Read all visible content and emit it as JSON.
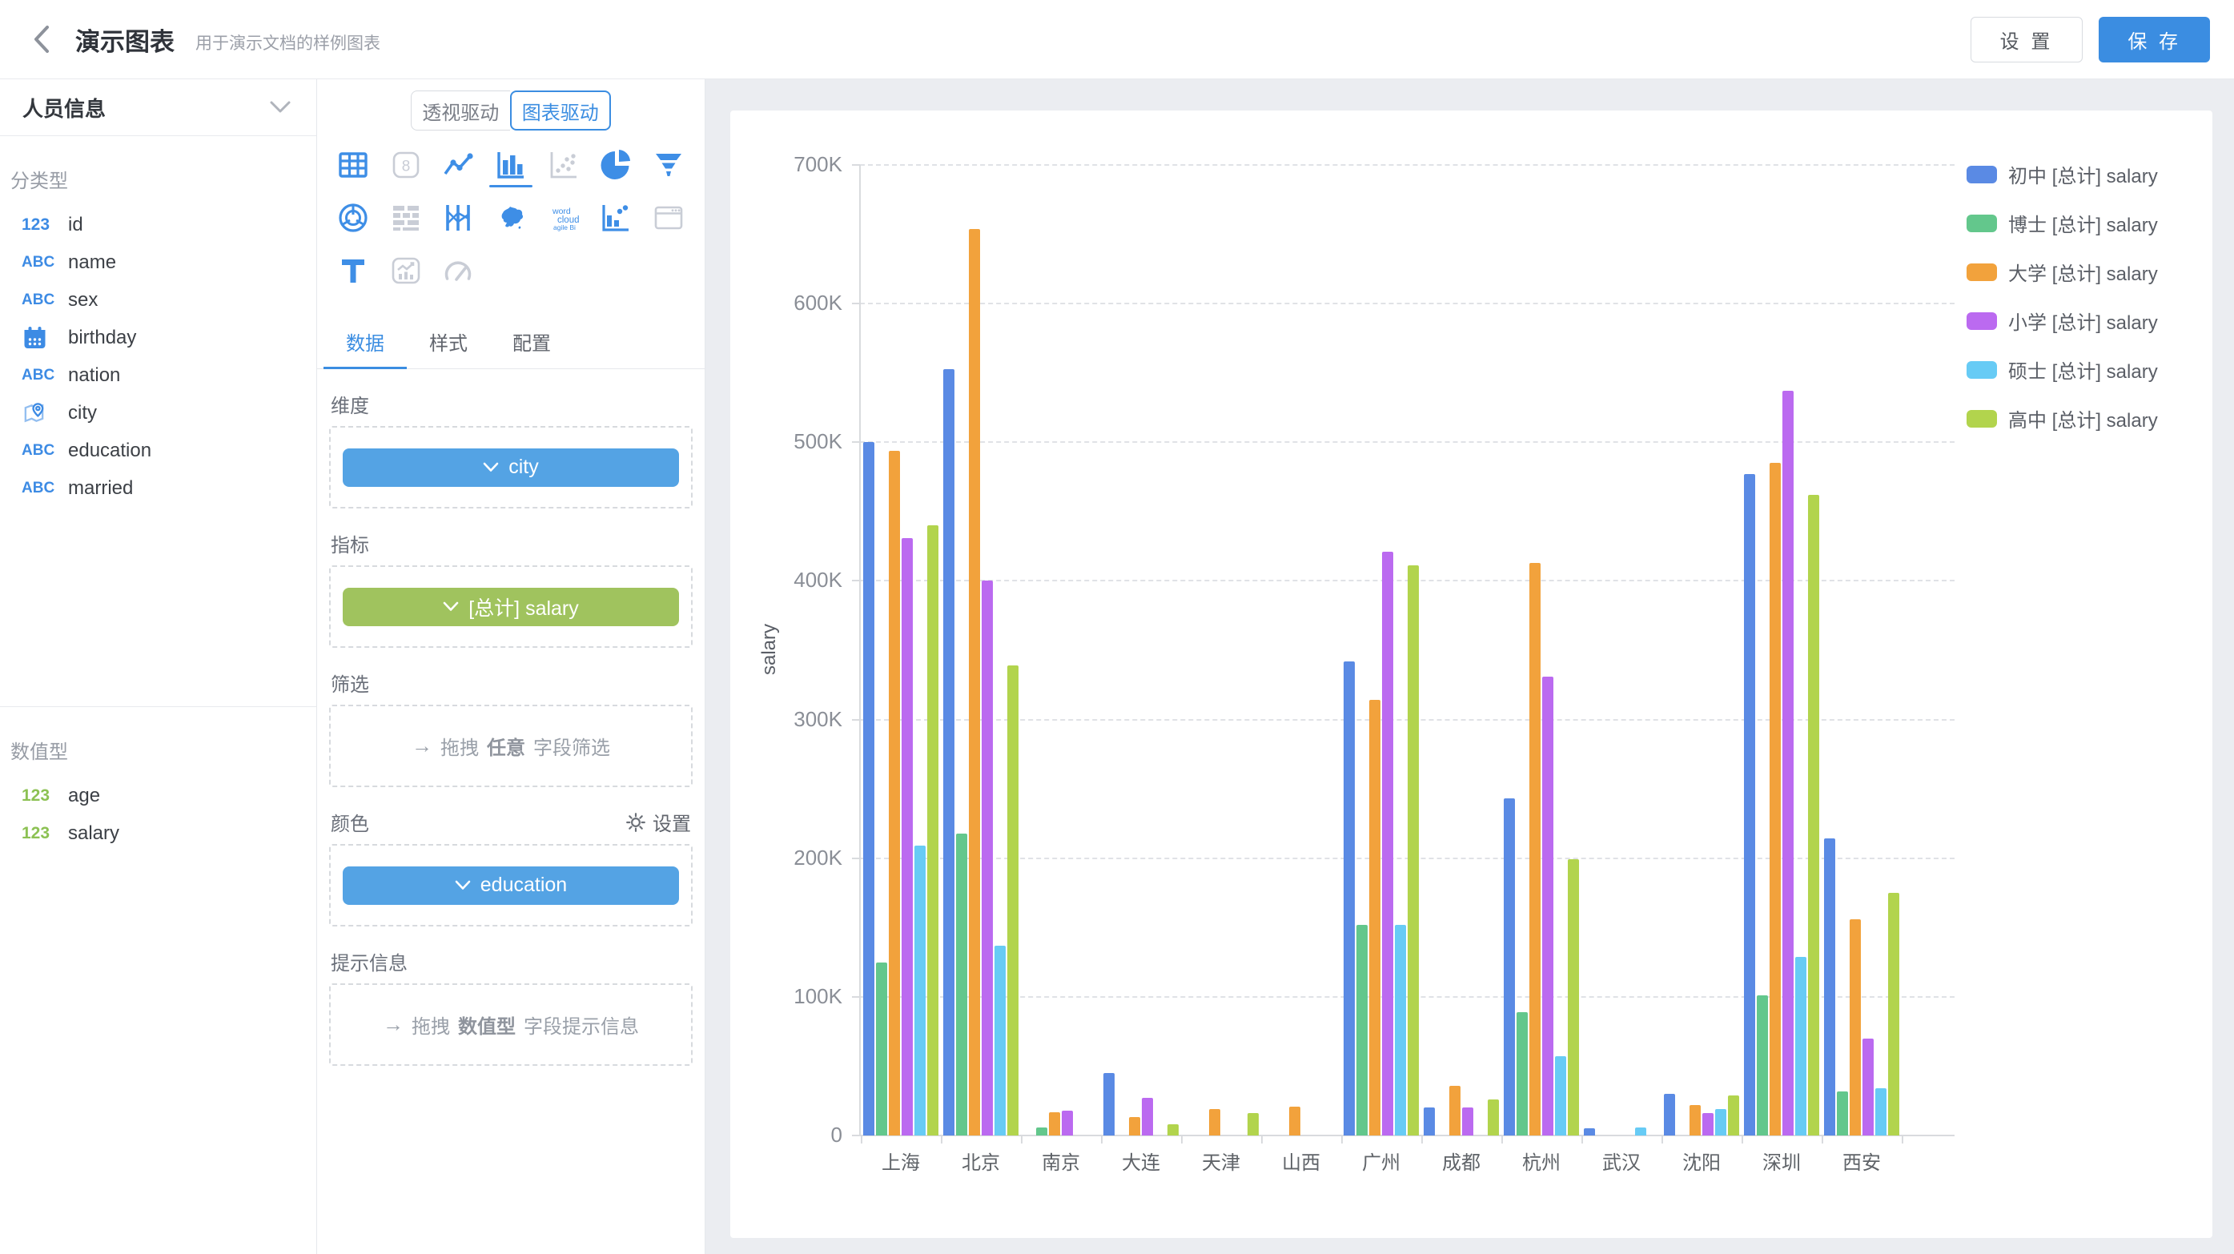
{
  "header": {
    "title": "演示图表",
    "subtitle": "用于演示文档的样例图表",
    "settings_label": "设 置",
    "save_label": "保 存"
  },
  "sidebar": {
    "dataset_name": "人员信息",
    "groups": [
      {
        "label": "分类型",
        "items": [
          {
            "icon": "number",
            "color": "blue",
            "label": "id"
          },
          {
            "icon": "text",
            "color": "blue",
            "label": "name"
          },
          {
            "icon": "text",
            "color": "blue",
            "label": "sex"
          },
          {
            "icon": "date",
            "color": "blue",
            "label": "birthday"
          },
          {
            "icon": "text",
            "color": "blue",
            "label": "nation"
          },
          {
            "icon": "geo",
            "color": "blue",
            "label": "city"
          },
          {
            "icon": "text",
            "color": "blue",
            "label": "education"
          },
          {
            "icon": "text",
            "color": "blue",
            "label": "married"
          }
        ]
      },
      {
        "label": "数值型",
        "items": [
          {
            "icon": "number",
            "color": "green",
            "label": "age"
          },
          {
            "icon": "number",
            "color": "green",
            "label": "salary"
          }
        ]
      }
    ]
  },
  "panel": {
    "modes": [
      {
        "label": "透视驱动",
        "active": false
      },
      {
        "label": "图表驱动",
        "active": true
      }
    ],
    "chart_types": [
      {
        "name": "table",
        "state": "enabled"
      },
      {
        "name": "kpi-card",
        "state": "disabled"
      },
      {
        "name": "line",
        "state": "enabled"
      },
      {
        "name": "bar",
        "state": "selected"
      },
      {
        "name": "scatter",
        "state": "disabled"
      },
      {
        "name": "pie",
        "state": "enabled"
      },
      {
        "name": "funnel",
        "state": "enabled"
      },
      {
        "name": "radar",
        "state": "enabled"
      },
      {
        "name": "crosstab",
        "state": "disabled"
      },
      {
        "name": "parallel",
        "state": "enabled"
      },
      {
        "name": "map-china",
        "state": "enabled"
      },
      {
        "name": "word-cloud",
        "state": "enabled"
      },
      {
        "name": "combo",
        "state": "enabled"
      },
      {
        "name": "iframe",
        "state": "disabled"
      },
      {
        "name": "text",
        "state": "enabled"
      },
      {
        "name": "trend-card",
        "state": "disabled"
      },
      {
        "name": "gauge",
        "state": "disabled"
      }
    ],
    "tabs": [
      {
        "label": "数据",
        "active": true
      },
      {
        "label": "样式",
        "active": false
      },
      {
        "label": "配置",
        "active": false
      }
    ],
    "sections": {
      "dimension": {
        "label": "维度",
        "pill": {
          "text": "city",
          "color": "#54a3e4"
        }
      },
      "measure": {
        "label": "指标",
        "pill": {
          "text": "[总计] salary",
          "color": "#a0c35e"
        }
      },
      "filter": {
        "label": "筛选",
        "ph_prefix": "拖拽",
        "ph_bold": "任意",
        "ph_suffix": "字段筛选"
      },
      "color": {
        "label": "颜色",
        "action": "设置",
        "pill": {
          "text": "education",
          "color": "#54a3e4"
        }
      },
      "tooltip": {
        "label": "提示信息",
        "ph_prefix": "拖拽",
        "ph_bold": "数值型",
        "ph_suffix": "字段提示信息"
      }
    }
  },
  "chart_data": {
    "type": "bar",
    "title": "",
    "xlabel": "",
    "ylabel": "salary",
    "ylim": [
      0,
      700000
    ],
    "yticks": [
      "0",
      "100K",
      "200K",
      "300K",
      "400K",
      "500K",
      "600K",
      "700K"
    ],
    "grid": "dashed-horizontal",
    "legend_position": "right",
    "categories": [
      "上海",
      "北京",
      "南京",
      "大连",
      "天津",
      "山西",
      "广州",
      "成都",
      "杭州",
      "武汉",
      "沈阳",
      "深圳",
      "西安"
    ],
    "series": [
      {
        "name": "初中 [总计] salary",
        "color": "#5a8ae4",
        "values": [
          500000,
          553000,
          0,
          45000,
          0,
          0,
          342000,
          20000,
          243000,
          5000,
          30000,
          477000,
          214000
        ]
      },
      {
        "name": "博士 [总计] salary",
        "color": "#63c78c",
        "values": [
          125000,
          218000,
          6000,
          0,
          0,
          0,
          152000,
          0,
          89000,
          0,
          0,
          101000,
          32000
        ]
      },
      {
        "name": "大学 [总计] salary",
        "color": "#f2a23c",
        "values": [
          494000,
          654000,
          17000,
          13000,
          19000,
          21000,
          314000,
          36000,
          413000,
          0,
          22000,
          485000,
          156000
        ]
      },
      {
        "name": "小学 [总计] salary",
        "color": "#bb6af0",
        "values": [
          431000,
          400000,
          18000,
          27000,
          0,
          0,
          421000,
          20000,
          331000,
          0,
          16000,
          537000,
          70000
        ]
      },
      {
        "name": "硕士 [总计] salary",
        "color": "#67cbf5",
        "values": [
          209000,
          137000,
          0,
          0,
          0,
          0,
          152000,
          0,
          57000,
          6000,
          19000,
          129000,
          34000
        ]
      },
      {
        "name": "高中 [总计] salary",
        "color": "#b2d44d",
        "values": [
          440000,
          339000,
          0,
          8000,
          16000,
          0,
          411000,
          26000,
          199000,
          0,
          29000,
          462000,
          175000
        ]
      }
    ]
  }
}
